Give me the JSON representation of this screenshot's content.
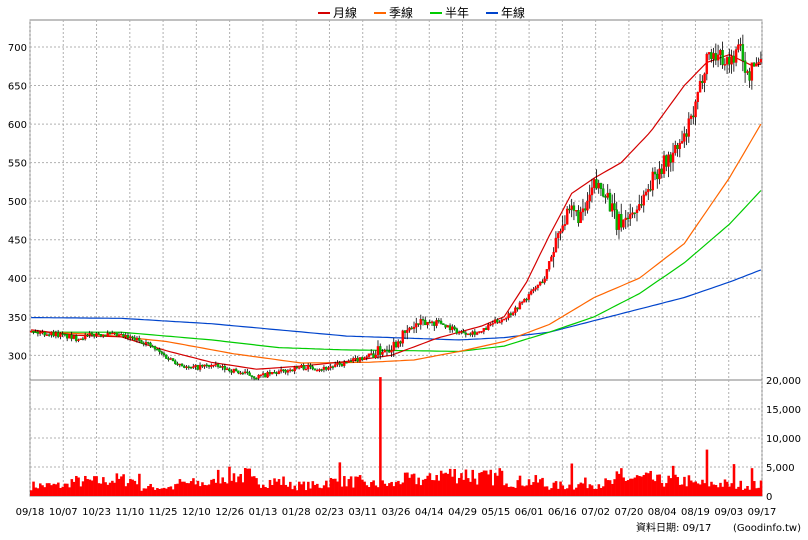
{
  "chart_data": {
    "type": "candlestick",
    "legend": [
      {
        "name": "月線",
        "color": "#d40000"
      },
      {
        "name": "季線",
        "color": "#ff6600"
      },
      {
        "name": "半年",
        "color": "#00cc00"
      },
      {
        "name": "年線",
        "color": "#0044cc"
      }
    ],
    "legend_placement": "top-center",
    "grid": true,
    "price_axis": {
      "min": 268,
      "max": 735,
      "ticks": [
        300,
        350,
        400,
        450,
        500,
        550,
        600,
        650,
        700
      ],
      "side": "left"
    },
    "volume_axis": {
      "min": 0,
      "max": 20000,
      "ticks": [
        "0",
        "5,000",
        "10,000",
        "15,000",
        "20,000"
      ],
      "side": "right"
    },
    "x_labels": [
      "09/18",
      "10/07",
      "10/23",
      "11/10",
      "11/25",
      "12/10",
      "12/26",
      "01/13",
      "01/28",
      "02/23",
      "03/11",
      "03/26",
      "04/14",
      "04/29",
      "05/15",
      "06/01",
      "06/16",
      "07/02",
      "07/20",
      "08/04",
      "08/19",
      "09/03",
      "09/17"
    ],
    "candle_count": 245,
    "price_anchors": [
      [
        0,
        330
      ],
      [
        10,
        328
      ],
      [
        20,
        322
      ],
      [
        30,
        328
      ],
      [
        40,
        325
      ],
      [
        50,
        318
      ],
      [
        60,
        298
      ],
      [
        70,
        283
      ],
      [
        80,
        287
      ],
      [
        90,
        280
      ],
      [
        100,
        272
      ],
      [
        110,
        278
      ],
      [
        120,
        285
      ],
      [
        130,
        283
      ],
      [
        140,
        290
      ],
      [
        150,
        300
      ],
      [
        160,
        312
      ],
      [
        170,
        338
      ],
      [
        180,
        345
      ],
      [
        190,
        330
      ],
      [
        200,
        330
      ],
      [
        205,
        342
      ],
      [
        210,
        348
      ],
      [
        215,
        360
      ],
      [
        220,
        375
      ],
      [
        228,
        400
      ],
      [
        235,
        470
      ],
      [
        240,
        485
      ],
      [
        245,
        480
      ]
    ],
    "price_anchors_note": "",
    "ma_month": [
      [
        0,
        333
      ],
      [
        20,
        326
      ],
      [
        40,
        324
      ],
      [
        60,
        306
      ],
      [
        80,
        291
      ],
      [
        100,
        282
      ],
      [
        120,
        286
      ],
      [
        140,
        292
      ],
      [
        160,
        300
      ],
      [
        180,
        322
      ],
      [
        200,
        338
      ],
      [
        210,
        350
      ],
      [
        220,
        395
      ],
      [
        230,
        455
      ],
      [
        240,
        510
      ],
      [
        250,
        530
      ],
      [
        262,
        550
      ],
      [
        275,
        590
      ],
      [
        290,
        650
      ],
      [
        300,
        680
      ],
      [
        310,
        690
      ],
      [
        320,
        676
      ],
      [
        325,
        678
      ]
    ],
    "ma_quarter": [
      [
        0,
        331
      ],
      [
        30,
        327
      ],
      [
        60,
        318
      ],
      [
        90,
        302
      ],
      [
        120,
        290
      ],
      [
        150,
        291
      ],
      [
        170,
        294
      ],
      [
        190,
        305
      ],
      [
        210,
        318
      ],
      [
        230,
        340
      ],
      [
        250,
        375
      ],
      [
        270,
        400
      ],
      [
        290,
        445
      ],
      [
        310,
        530
      ],
      [
        325,
        605
      ]
    ],
    "ma_half": [
      [
        0,
        330
      ],
      [
        40,
        330
      ],
      [
        80,
        320
      ],
      [
        110,
        310
      ],
      [
        140,
        307
      ],
      [
        170,
        306
      ],
      [
        190,
        305
      ],
      [
        210,
        312
      ],
      [
        230,
        330
      ],
      [
        250,
        350
      ],
      [
        270,
        380
      ],
      [
        290,
        420
      ],
      [
        310,
        470
      ],
      [
        325,
        517
      ]
    ],
    "ma_year": [
      [
        0,
        349
      ],
      [
        40,
        348
      ],
      [
        80,
        341
      ],
      [
        110,
        333
      ],
      [
        140,
        325
      ],
      [
        170,
        322
      ],
      [
        190,
        320
      ],
      [
        210,
        323
      ],
      [
        230,
        330
      ],
      [
        250,
        345
      ],
      [
        270,
        360
      ],
      [
        290,
        375
      ],
      [
        310,
        395
      ],
      [
        325,
        412
      ]
    ],
    "volume_profile": [
      1800,
      2500,
      2800,
      1500,
      2200,
      3500,
      2500,
      1800,
      2500,
      2000,
      2800,
      3800,
      3200,
      2500,
      1800,
      2200,
      3000,
      2600,
      2100,
      1900
    ],
    "volume_spikes": [
      [
        137,
        5800
      ],
      [
        155,
        20500
      ],
      [
        196,
        4500
      ],
      [
        208,
        4800
      ],
      [
        240,
        5600
      ],
      [
        262,
        4800
      ],
      [
        285,
        5200
      ],
      [
        300,
        8000
      ],
      [
        312,
        5500
      ],
      [
        320,
        4800
      ]
    ],
    "date_caption": "資料日期: 09/17",
    "source": "(Goodinfo.tw)"
  }
}
